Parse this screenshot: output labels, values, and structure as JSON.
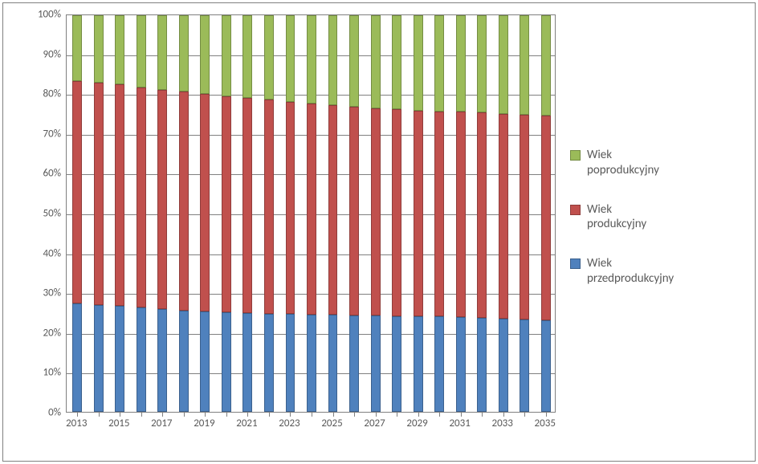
{
  "chart": {
    "type": "stacked-bar-100",
    "background_color": "#ffffff",
    "border_color": "#808080",
    "grid_color": "#808080",
    "text_color": "#595959",
    "title_fontsize": 13,
    "label_fontsize": 13,
    "legend_fontsize": 15,
    "y": {
      "min": 0,
      "max": 100,
      "step": 10,
      "suffix": "%",
      "labels": [
        "0%",
        "10%",
        "20%",
        "30%",
        "40%",
        "50%",
        "60%",
        "70%",
        "80%",
        "90%",
        "100%"
      ]
    },
    "categories": [
      "2013",
      "2014",
      "2015",
      "2016",
      "2017",
      "2018",
      "2019",
      "2020",
      "2021",
      "2022",
      "2023",
      "2024",
      "2025",
      "2026",
      "2027",
      "2028",
      "2029",
      "2030",
      "2031",
      "2032",
      "2033",
      "2034",
      "2035"
    ],
    "x_label_step": 2,
    "series": [
      {
        "key": "przed",
        "label": "Wiek przedprodukcyjny",
        "fill": "#4f81bd",
        "border": "#3b608d"
      },
      {
        "key": "prod",
        "label": "Wiek produkcyjny",
        "fill": "#c0504d",
        "border": "#8f3c3a"
      },
      {
        "key": "po",
        "label": "Wiek poprodukcyjny",
        "fill": "#9bbb59",
        "border": "#748c42"
      }
    ],
    "legend_order": [
      "po",
      "prod",
      "przed"
    ],
    "values": {
      "przed": [
        27.3,
        27.0,
        26.7,
        26.4,
        26.0,
        25.6,
        25.4,
        25.2,
        25.0,
        24.8,
        24.6,
        24.5,
        24.4,
        24.3,
        24.2,
        24.1,
        24.0,
        24.0,
        23.9,
        23.7,
        23.5,
        23.3,
        23.1
      ],
      "prod": [
        56.2,
        56.0,
        55.9,
        55.4,
        55.1,
        55.1,
        54.8,
        54.4,
        54.2,
        53.9,
        53.5,
        53.3,
        53.0,
        52.7,
        52.3,
        52.2,
        52.0,
        51.8,
        51.8,
        51.8,
        51.7,
        51.6,
        51.6
      ],
      "po": [
        16.5,
        17.0,
        17.4,
        18.2,
        18.9,
        19.3,
        19.8,
        20.4,
        20.8,
        21.3,
        21.9,
        22.2,
        22.6,
        23.0,
        23.5,
        23.7,
        24.0,
        24.2,
        24.3,
        24.5,
        24.8,
        25.1,
        25.3
      ]
    },
    "bar_width_ratio": 0.45
  }
}
